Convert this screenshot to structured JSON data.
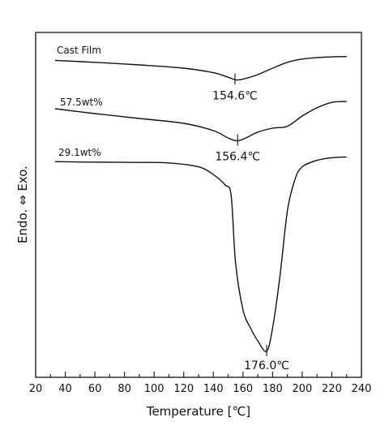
{
  "chart_data": {
    "type": "line",
    "xlabel": "Temperature [℃]",
    "ylabel": "Endo. ⇔ Exo.",
    "xlim": [
      20,
      240
    ],
    "xticks": [
      20,
      40,
      60,
      80,
      100,
      120,
      140,
      160,
      180,
      200,
      220,
      240
    ],
    "y_units": "arbitrary (heat flow, endotherm downward)",
    "grid": false,
    "series": [
      {
        "name": "Cast Film",
        "peak_x": 154.6,
        "peak_label": "154.6℃",
        "points": [
          [
            33,
            -0.3
          ],
          [
            60,
            -0.6
          ],
          [
            90,
            -1.0
          ],
          [
            120,
            -1.5
          ],
          [
            140,
            -2.2
          ],
          [
            150,
            -2.9
          ],
          [
            155,
            -3.3
          ],
          [
            160,
            -3.2
          ],
          [
            170,
            -2.5
          ],
          [
            180,
            -1.5
          ],
          [
            190,
            -0.6
          ],
          [
            200,
            -0.1
          ],
          [
            215,
            0.2
          ],
          [
            230,
            0.3
          ]
        ]
      },
      {
        "name": "57.5wt%",
        "peak_x": 156.4,
        "peak_label": "156.4℃",
        "points": [
          [
            33,
            -1.0
          ],
          [
            60,
            -2.0
          ],
          [
            90,
            -3.0
          ],
          [
            120,
            -4.0
          ],
          [
            140,
            -5.5
          ],
          [
            150,
            -7.0
          ],
          [
            156,
            -7.6
          ],
          [
            162,
            -7.0
          ],
          [
            170,
            -5.8
          ],
          [
            180,
            -5.0
          ],
          [
            190,
            -4.6
          ],
          [
            200,
            -2.5
          ],
          [
            210,
            -0.8
          ],
          [
            220,
            0.3
          ],
          [
            230,
            0.5
          ]
        ]
      },
      {
        "name": "29.1wt%",
        "peak_x": 176.0,
        "peak_label": "176.0℃",
        "points": [
          [
            33,
            -1.0
          ],
          [
            60,
            -1.2
          ],
          [
            90,
            -1.3
          ],
          [
            110,
            -1.5
          ],
          [
            130,
            -3.0
          ],
          [
            140,
            -6.0
          ],
          [
            148,
            -10.0
          ],
          [
            152,
            -14.0
          ],
          [
            155,
            -40.0
          ],
          [
            160,
            -58.0
          ],
          [
            165,
            -65.0
          ],
          [
            170,
            -70.0
          ],
          [
            176,
            -74.0
          ],
          [
            180,
            -65.0
          ],
          [
            185,
            -45.0
          ],
          [
            190,
            -20.0
          ],
          [
            195,
            -8.0
          ],
          [
            200,
            -3.0
          ],
          [
            210,
            -0.5
          ],
          [
            220,
            0.5
          ],
          [
            230,
            0.8
          ]
        ]
      }
    ]
  }
}
